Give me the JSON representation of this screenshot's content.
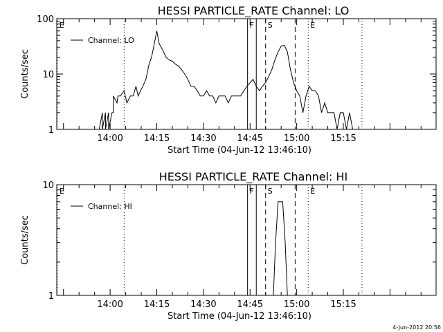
{
  "chart_data": [
    {
      "type": "line",
      "title": "HESSI PARTICLE_RATE Channel: LO",
      "xlabel": "Start Time (04-Jun-12 13:46:10)",
      "ylabel": "Counts/sec",
      "ylog": true,
      "ylim": [
        1,
        100
      ],
      "yticks": [
        {
          "v": 1,
          "label": "1"
        },
        {
          "v": 10,
          "label": "10"
        },
        {
          "v": 100,
          "label": "100"
        }
      ],
      "xlim": [
        -17.17,
        104.83
      ],
      "xticks": [
        {
          "v": 0,
          "label": "14:00"
        },
        {
          "v": 15,
          "label": "14:15"
        },
        {
          "v": 30,
          "label": "14:30"
        },
        {
          "v": 45,
          "label": "14:45"
        },
        {
          "v": 60,
          "label": "15:00"
        },
        {
          "v": 75,
          "label": "15:15"
        }
      ],
      "legend": {
        "label": "Channel: LO",
        "placement": "top-left"
      },
      "markers": [
        {
          "v": -17.0,
          "style": "dotted",
          "label": "E"
        },
        {
          "v": 4.5,
          "style": "dotted",
          "label": ""
        },
        {
          "v": 44.2,
          "style": "solid",
          "label": "F"
        },
        {
          "v": 47.0,
          "style": "solid",
          "label": ""
        },
        {
          "v": 50.0,
          "style": "dashed",
          "label": "S"
        },
        {
          "v": 59.5,
          "style": "dashed",
          "label": ""
        },
        {
          "v": 63.7,
          "style": "dotted",
          "label": "E"
        },
        {
          "v": 81.0,
          "style": "dotted",
          "label": ""
        }
      ],
      "series": [
        {
          "x": [
            -3.5,
            -2.5,
            -2.5,
            -1.5,
            -1.5,
            -0.5,
            -0.5,
            0.6,
            1.0,
            1.0,
            2.2,
            2.5,
            3.3,
            4.5,
            5.4,
            6.5,
            7.4,
            8.3,
            9.0,
            9.8,
            10.5,
            11.5,
            12.5,
            13.3,
            14.2,
            15.0,
            15.8,
            16.5,
            17.2,
            18.0,
            19.0,
            20.0,
            21.0,
            22.0,
            23.0,
            24.0,
            25.0,
            26.0,
            27.0,
            28.0,
            29.0,
            30.0,
            31.0,
            32.0,
            33.0,
            34.0,
            35.0,
            36.0,
            37.0,
            38.0,
            39.0,
            40.0,
            41.0,
            42.0,
            43.0,
            44.0,
            45.0,
            46.0,
            47.0,
            48.0,
            49.0,
            50.0,
            51.0,
            52.0,
            53.0,
            54.0,
            55.0,
            56.0,
            57.0,
            58.0,
            59.0,
            60.0,
            61.0,
            62.0,
            63.0,
            64.0,
            65.0,
            66.0,
            67.0,
            68.0,
            69.0,
            70.0,
            71.0,
            72.0,
            73.0,
            74.0,
            75.0,
            76.0,
            77.0,
            78.0,
            79.0
          ],
          "y": [
            1.0,
            2.0,
            1.0,
            2.0,
            1.0,
            2.0,
            1.0,
            2.0,
            2.0,
            4.0,
            3.0,
            4.0,
            4.0,
            5.0,
            3.0,
            4.0,
            4.0,
            6.0,
            4.0,
            5.0,
            6.0,
            8.0,
            15.0,
            20.0,
            35.0,
            60.0,
            35.0,
            30.0,
            25.0,
            20.0,
            18.0,
            17.0,
            15.0,
            14.0,
            12.0,
            10.0,
            8.0,
            6.0,
            6.0,
            5.0,
            4.0,
            4.0,
            5.0,
            4.0,
            4.0,
            3.0,
            4.0,
            4.0,
            4.0,
            3.0,
            4.0,
            4.0,
            4.0,
            4.0,
            5.0,
            6.0,
            7.0,
            8.0,
            6.0,
            5.0,
            6.0,
            7.0,
            9.0,
            12.0,
            18.0,
            25.0,
            32.0,
            33.0,
            25.0,
            12.0,
            7.0,
            5.0,
            4.0,
            2.0,
            4.0,
            6.0,
            5.0,
            5.0,
            4.0,
            2.0,
            3.0,
            2.0,
            2.0,
            2.0,
            1.0,
            2.0,
            2.0,
            1.0,
            2.0,
            1.0,
            1.0
          ]
        }
      ]
    },
    {
      "type": "line",
      "title": "HESSI PARTICLE_RATE Channel: HI",
      "xlabel": "Start Time (04-Jun-12 13:46:10)",
      "ylabel": "Counts/sec",
      "ylog": true,
      "ylim": [
        1,
        10
      ],
      "yticks": [
        {
          "v": 1,
          "label": "1"
        },
        {
          "v": 10,
          "label": "10"
        }
      ],
      "xlim": [
        -17.17,
        104.83
      ],
      "xticks": [
        {
          "v": 0,
          "label": "14:00"
        },
        {
          "v": 15,
          "label": "14:15"
        },
        {
          "v": 30,
          "label": "14:30"
        },
        {
          "v": 45,
          "label": "14:45"
        },
        {
          "v": 60,
          "label": "15:00"
        },
        {
          "v": 75,
          "label": "15:15"
        }
      ],
      "legend": {
        "label": "Channel: HI",
        "placement": "top-left"
      },
      "markers": [
        {
          "v": -17.0,
          "style": "dotted",
          "label": "E"
        },
        {
          "v": 4.5,
          "style": "dotted",
          "label": ""
        },
        {
          "v": 44.2,
          "style": "solid",
          "label": "F"
        },
        {
          "v": 47.0,
          "style": "solid",
          "label": ""
        },
        {
          "v": 50.0,
          "style": "dashed",
          "label": "S"
        },
        {
          "v": 59.5,
          "style": "dashed",
          "label": ""
        },
        {
          "v": 63.7,
          "style": "dotted",
          "label": "E"
        },
        {
          "v": 81.0,
          "style": "dotted",
          "label": ""
        }
      ],
      "series": [
        {
          "x": [
            52.5,
            53.2,
            54.0,
            54.8,
            55.5,
            56.3,
            57.0
          ],
          "y": [
            1.0,
            3.0,
            7.0,
            7.0,
            7.0,
            3.0,
            1.0
          ]
        }
      ]
    }
  ],
  "timestamp": "4-Jun-2012 20:56"
}
